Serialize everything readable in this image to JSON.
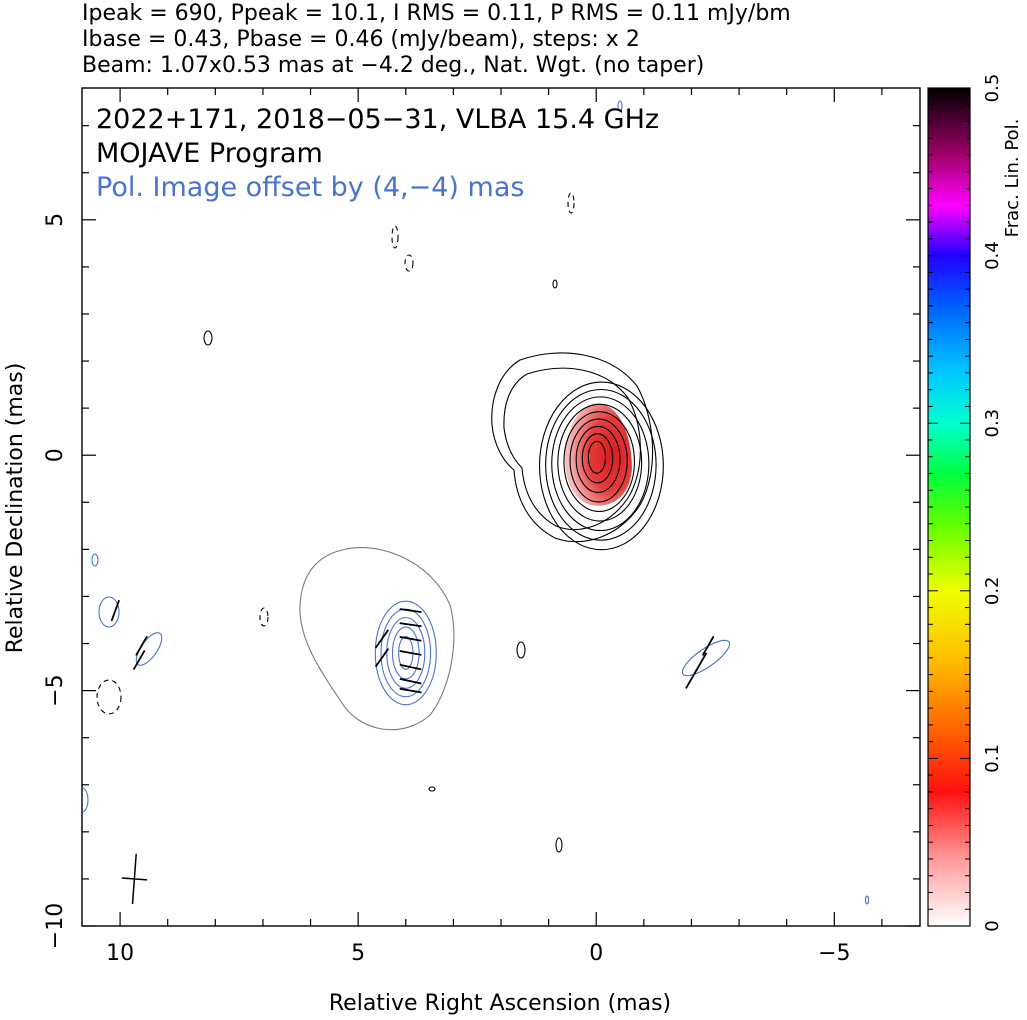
{
  "header": {
    "line1": "Ipeak = 690, Ppeak = 10.1, I RMS = 0.11, P RMS = 0.11 mJy/bm",
    "line2": "Ibase = 0.43, Pbase = 0.46 (mJy/beam), steps: x 2",
    "line3": "Beam: 1.07x0.53 mas at −4.2 deg., Nat. Wgt. (no taper)"
  },
  "annotations": {
    "source_line": "2022+171, 2018−05−31, VLBA 15.4 GHz",
    "program": "MOJAVE Program",
    "pol_offset": "Pol. Image offset by (4,−4) mas"
  },
  "colors": {
    "stokes_i_contour": "#000000",
    "pol_contour": "#4a72d0",
    "base_contour": "#7a7a7a",
    "frac_pol_fill": "#e02020",
    "annotation_blue": "#4a72d0"
  },
  "chart_data": {
    "type": "contour",
    "xlabel": "Relative Right Ascension (mas)",
    "ylabel": "Relative Declination (mas)",
    "xlim": [
      10.8,
      -6.8
    ],
    "ylim": [
      -10,
      7.8
    ],
    "x_ticks": [
      10,
      5,
      0,
      -5
    ],
    "x_tick_labels": [
      "10",
      "5",
      "0",
      "−5"
    ],
    "y_ticks": [
      5,
      0,
      -5,
      -10
    ],
    "y_tick_labels": [
      "5",
      "0",
      "−5",
      "−10"
    ],
    "colorbar": {
      "label": "Frac. Lin. Pol.",
      "range": [
        0,
        0.5
      ],
      "ticks": [
        0,
        0.1,
        0.2,
        0.3,
        0.4,
        0.5
      ],
      "tick_labels": [
        "0",
        "0.1",
        "0.2",
        "0.3",
        "0.4",
        "0.5"
      ]
    },
    "core": {
      "x": 0,
      "y": 0
    },
    "stokes_i_contours_mas": [
      {
        "a": 0.18,
        "b": 0.34
      },
      {
        "a": 0.32,
        "b": 0.52
      },
      {
        "a": 0.46,
        "b": 0.7
      },
      {
        "a": 0.6,
        "b": 0.88
      },
      {
        "a": 0.74,
        "b": 1.06
      },
      {
        "a": 0.88,
        "b": 1.24
      },
      {
        "a": 1.02,
        "b": 1.42
      },
      {
        "a": 1.16,
        "b": 1.6
      },
      {
        "a": 1.3,
        "b": 1.78
      }
    ],
    "pol_centroid": {
      "x": 4.0,
      "y": -4.2
    },
    "pol_contours_mas": [
      {
        "a": 0.15,
        "b": 0.35
      },
      {
        "a": 0.28,
        "b": 0.55
      },
      {
        "a": 0.4,
        "b": 0.75
      },
      {
        "a": 0.52,
        "b": 0.93
      },
      {
        "a": 0.64,
        "b": 1.1
      }
    ],
    "evpa_vectors": [
      {
        "x": 3.9,
        "y": -3.3,
        "angle": -8
      },
      {
        "x": 3.9,
        "y": -3.6,
        "angle": -8
      },
      {
        "x": 3.9,
        "y": -3.9,
        "angle": -10
      },
      {
        "x": 3.9,
        "y": -4.2,
        "angle": -10
      },
      {
        "x": 3.9,
        "y": -4.5,
        "angle": -12
      },
      {
        "x": 3.9,
        "y": -4.8,
        "angle": -12
      },
      {
        "x": 3.9,
        "y": -5.0,
        "angle": -10
      },
      {
        "x": 4.5,
        "y": -3.9,
        "angle": 55
      },
      {
        "x": 4.5,
        "y": -4.3,
        "angle": 55
      },
      {
        "x": 9.55,
        "y": -4.05,
        "angle": 60
      },
      {
        "x": 9.6,
        "y": -4.35,
        "angle": 60
      },
      {
        "x": -2.35,
        "y": -4.05,
        "angle": 60
      },
      {
        "x": -2.2,
        "y": -4.4,
        "angle": 60
      },
      {
        "x": -2.0,
        "y": -4.75,
        "angle": 60
      },
      {
        "x": 10.1,
        "y": -3.3,
        "angle": 70
      }
    ],
    "beam": {
      "x": 9.7,
      "y": -9.0,
      "major": 1.07,
      "minor": 0.53,
      "pa_deg": -4.2
    }
  }
}
